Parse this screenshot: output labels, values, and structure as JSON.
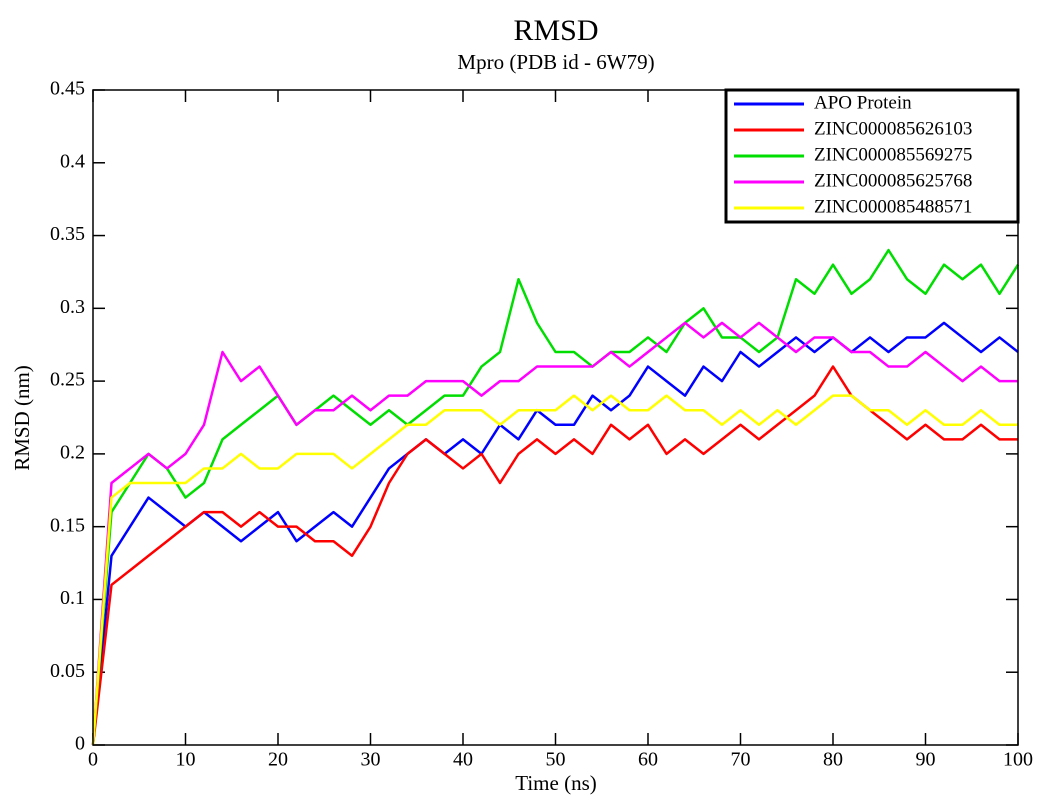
{
  "chart_data": {
    "type": "line",
    "title": "RMSD",
    "subtitle": "Mpro (PDB id - 6W79)",
    "x_label": "Time (ns)",
    "y_label": "RMSD (nm)",
    "xlim": [
      0,
      100
    ],
    "xticks": [
      0,
      10,
      20,
      30,
      40,
      50,
      60,
      70,
      80,
      90,
      100
    ],
    "ylim": [
      0,
      0.45
    ],
    "yticks": [
      0,
      0.05,
      0.1,
      0.15,
      0.2,
      0.25,
      0.3,
      0.35,
      0.4,
      0.45
    ],
    "legend": "upper-right",
    "x": [
      0,
      2,
      4,
      6,
      8,
      10,
      12,
      14,
      16,
      18,
      20,
      22,
      24,
      26,
      28,
      30,
      32,
      34,
      36,
      38,
      40,
      42,
      44,
      46,
      48,
      50,
      52,
      54,
      56,
      58,
      60,
      62,
      64,
      66,
      68,
      70,
      72,
      74,
      76,
      78,
      80,
      82,
      84,
      86,
      88,
      90,
      92,
      94,
      96,
      98,
      100
    ],
    "series": [
      {
        "name": "APO Protein",
        "color": "#0000ff",
        "values": [
          0,
          0.13,
          0.15,
          0.17,
          0.16,
          0.15,
          0.16,
          0.15,
          0.14,
          0.15,
          0.16,
          0.14,
          0.15,
          0.16,
          0.15,
          0.17,
          0.19,
          0.2,
          0.21,
          0.2,
          0.21,
          0.2,
          0.22,
          0.21,
          0.23,
          0.22,
          0.22,
          0.24,
          0.23,
          0.24,
          0.26,
          0.25,
          0.24,
          0.26,
          0.25,
          0.27,
          0.26,
          0.27,
          0.28,
          0.27,
          0.28,
          0.27,
          0.28,
          0.27,
          0.28,
          0.28,
          0.29,
          0.28,
          0.27,
          0.28,
          0.27
        ]
      },
      {
        "name": "ZINC000085626103",
        "color": "#ff0000",
        "values": [
          0,
          0.11,
          0.12,
          0.13,
          0.14,
          0.15,
          0.16,
          0.16,
          0.15,
          0.16,
          0.15,
          0.15,
          0.14,
          0.14,
          0.13,
          0.15,
          0.18,
          0.2,
          0.21,
          0.2,
          0.19,
          0.2,
          0.18,
          0.2,
          0.21,
          0.2,
          0.21,
          0.2,
          0.22,
          0.21,
          0.22,
          0.2,
          0.21,
          0.2,
          0.21,
          0.22,
          0.21,
          0.22,
          0.23,
          0.24,
          0.26,
          0.24,
          0.23,
          0.22,
          0.21,
          0.22,
          0.21,
          0.21,
          0.22,
          0.21,
          0.21
        ]
      },
      {
        "name": "ZINC000085569275",
        "color": "#00dd00",
        "values": [
          0,
          0.16,
          0.18,
          0.2,
          0.19,
          0.17,
          0.18,
          0.21,
          0.22,
          0.23,
          0.24,
          0.22,
          0.23,
          0.24,
          0.23,
          0.22,
          0.23,
          0.22,
          0.23,
          0.24,
          0.24,
          0.26,
          0.27,
          0.32,
          0.29,
          0.27,
          0.27,
          0.26,
          0.27,
          0.27,
          0.28,
          0.27,
          0.29,
          0.3,
          0.28,
          0.28,
          0.27,
          0.28,
          0.32,
          0.31,
          0.33,
          0.31,
          0.32,
          0.34,
          0.32,
          0.31,
          0.33,
          0.32,
          0.33,
          0.31,
          0.33
        ]
      },
      {
        "name": "ZINC000085625768",
        "color": "#ff00ff",
        "values": [
          0,
          0.18,
          0.19,
          0.2,
          0.19,
          0.2,
          0.22,
          0.27,
          0.25,
          0.26,
          0.24,
          0.22,
          0.23,
          0.23,
          0.24,
          0.23,
          0.24,
          0.24,
          0.25,
          0.25,
          0.25,
          0.24,
          0.25,
          0.25,
          0.26,
          0.26,
          0.26,
          0.26,
          0.27,
          0.26,
          0.27,
          0.28,
          0.29,
          0.28,
          0.29,
          0.28,
          0.29,
          0.28,
          0.27,
          0.28,
          0.28,
          0.27,
          0.27,
          0.26,
          0.26,
          0.27,
          0.26,
          0.25,
          0.26,
          0.25,
          0.25
        ]
      },
      {
        "name": "ZINC000085488571",
        "color": "#ffff00",
        "values": [
          0,
          0.17,
          0.18,
          0.18,
          0.18,
          0.18,
          0.19,
          0.19,
          0.2,
          0.19,
          0.19,
          0.2,
          0.2,
          0.2,
          0.19,
          0.2,
          0.21,
          0.22,
          0.22,
          0.23,
          0.23,
          0.23,
          0.22,
          0.23,
          0.23,
          0.23,
          0.24,
          0.23,
          0.24,
          0.23,
          0.23,
          0.24,
          0.23,
          0.23,
          0.22,
          0.23,
          0.22,
          0.23,
          0.22,
          0.23,
          0.24,
          0.24,
          0.23,
          0.23,
          0.22,
          0.23,
          0.22,
          0.22,
          0.23,
          0.22,
          0.22
        ]
      }
    ]
  }
}
